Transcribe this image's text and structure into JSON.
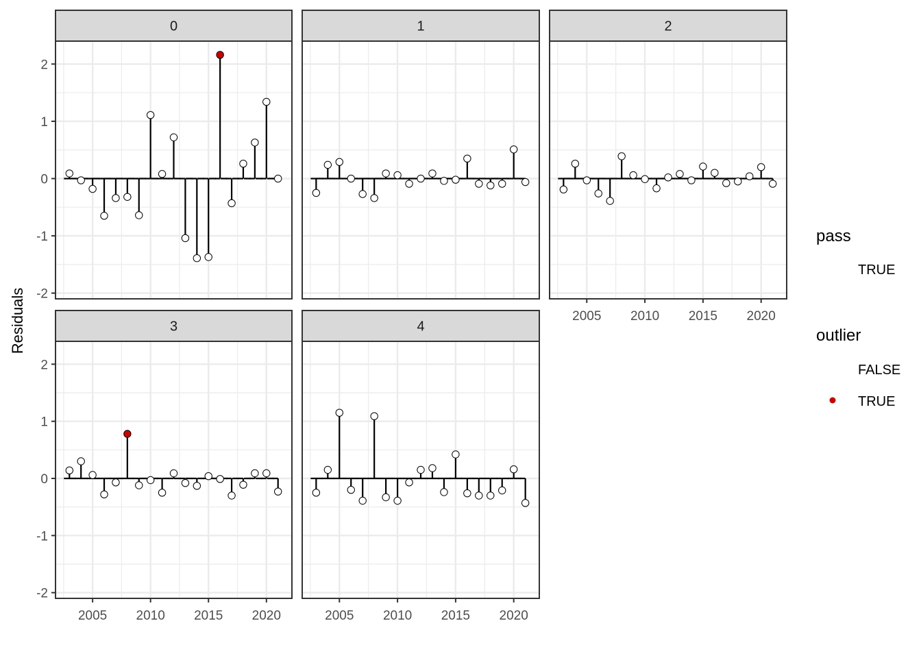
{
  "chart_data": {
    "type": "lollipop",
    "ylabel": "Residuals",
    "xlabel": "",
    "xlim": [
      2001.8,
      2022.2
    ],
    "ylim": [
      -2.1,
      2.4
    ],
    "x_ticks": [
      2005,
      2010,
      2015,
      2020
    ],
    "y_ticks": [
      -2,
      -1,
      0,
      1,
      2
    ],
    "grid": true,
    "reference_line": {
      "y": 0,
      "style": "dashed"
    },
    "colors": {
      "outlier_true": "#cc0000",
      "outlier_false": "#ffffff",
      "point_stroke": "#000000",
      "stem": "#000000",
      "strip_fill": "#d9d9d9",
      "grid_major": "#ebebeb",
      "panel_border": "#333333"
    },
    "years": [
      2003,
      2004,
      2005,
      2006,
      2007,
      2008,
      2009,
      2010,
      2011,
      2012,
      2013,
      2014,
      2015,
      2016,
      2017,
      2018,
      2019,
      2020,
      2021
    ],
    "panels": [
      {
        "label": "0",
        "values": [
          0.09,
          -0.03,
          -0.18,
          -0.65,
          -0.34,
          -0.32,
          -0.64,
          1.11,
          0.08,
          0.72,
          -1.04,
          -1.39,
          -1.37,
          2.16,
          -0.43,
          0.26,
          0.63,
          1.34,
          0.0
        ],
        "outliers": [
          2016
        ]
      },
      {
        "label": "1",
        "values": [
          -0.25,
          0.24,
          0.29,
          0.0,
          -0.27,
          -0.34,
          0.09,
          0.06,
          -0.09,
          0.0,
          0.09,
          -0.04,
          -0.02,
          0.35,
          -0.09,
          -0.12,
          -0.09,
          0.51,
          -0.06
        ],
        "outliers": []
      },
      {
        "label": "2",
        "values": [
          -0.19,
          0.26,
          -0.03,
          -0.26,
          -0.39,
          0.39,
          0.06,
          -0.01,
          -0.17,
          0.02,
          0.08,
          -0.03,
          0.21,
          0.1,
          -0.08,
          -0.05,
          0.04,
          0.2,
          -0.09
        ],
        "outliers": []
      },
      {
        "label": "3",
        "values": [
          0.14,
          0.3,
          0.06,
          -0.28,
          -0.07,
          0.78,
          -0.12,
          -0.03,
          -0.25,
          0.09,
          -0.08,
          -0.13,
          0.04,
          -0.01,
          -0.3,
          -0.11,
          0.09,
          0.09,
          -0.23
        ],
        "outliers": [
          2008
        ]
      },
      {
        "label": "4",
        "values": [
          -0.25,
          0.15,
          1.15,
          -0.2,
          -0.39,
          1.09,
          -0.33,
          -0.39,
          -0.07,
          0.15,
          0.18,
          -0.24,
          0.42,
          -0.26,
          -0.3,
          -0.3,
          -0.21,
          0.16,
          -0.43
        ],
        "outliers": []
      }
    ],
    "legend": {
      "placement": "right",
      "groups": [
        {
          "title": "pass",
          "entries": [
            {
              "label": "TRUE",
              "color": ""
            }
          ]
        },
        {
          "title": "outlier",
          "entries": [
            {
              "label": "FALSE",
              "color": ""
            },
            {
              "label": "TRUE",
              "color": "#cc0000"
            }
          ]
        }
      ]
    }
  }
}
